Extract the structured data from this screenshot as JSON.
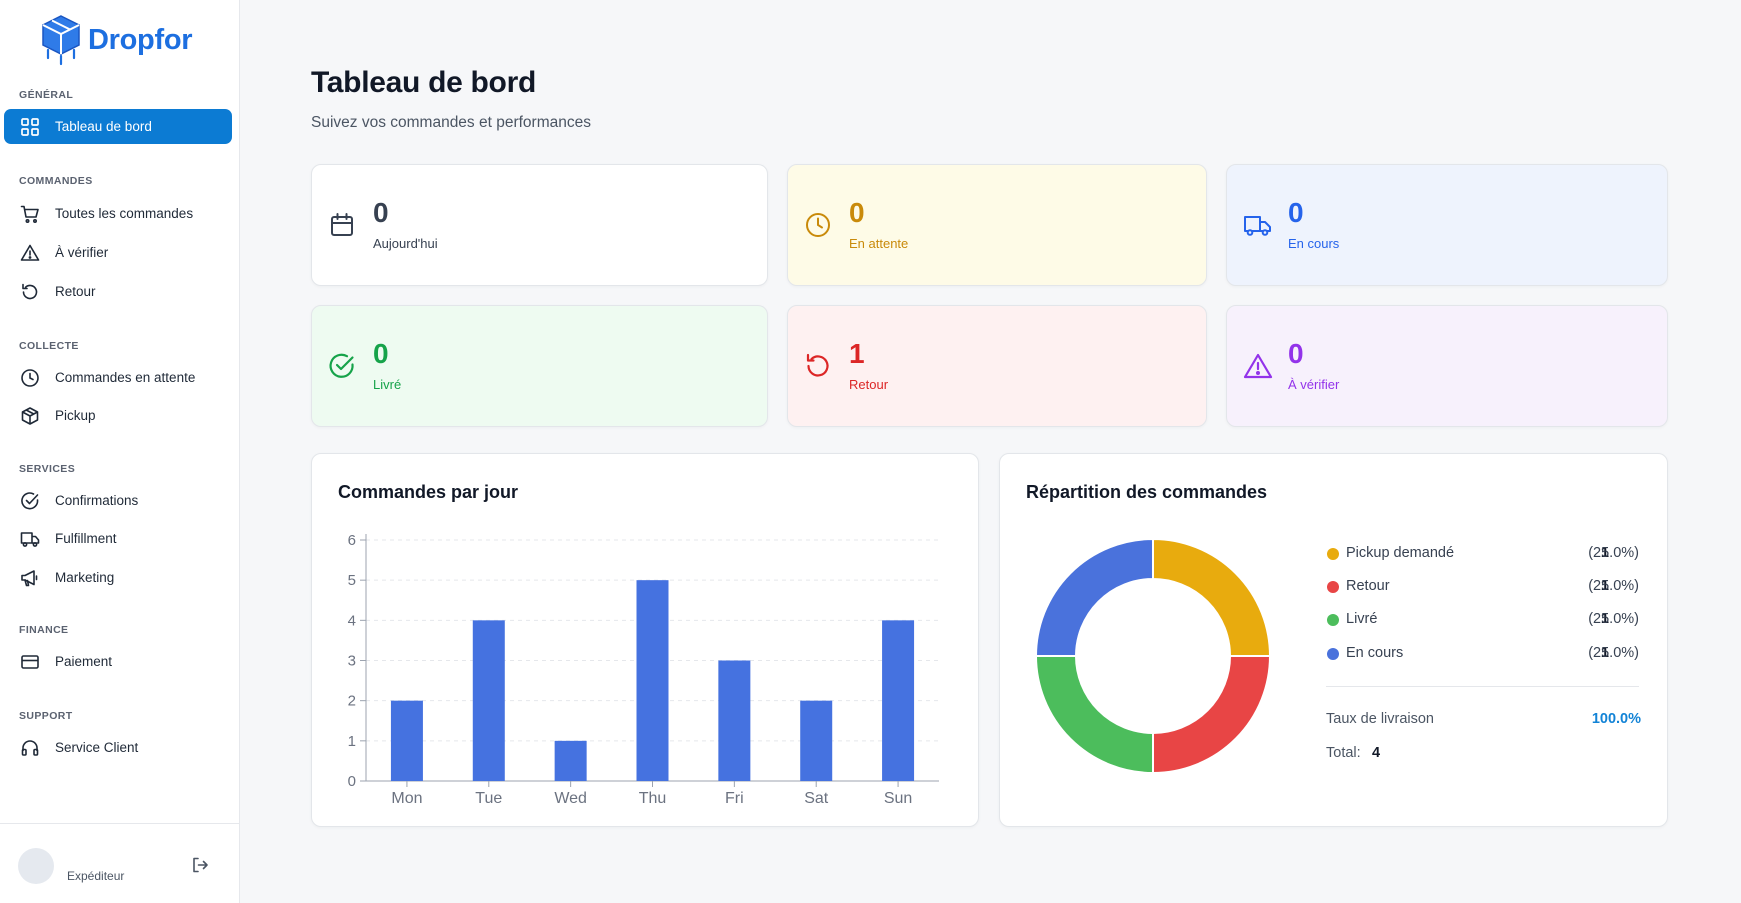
{
  "brand": {
    "name": "Dropfor",
    "color": "#1d6fe0"
  },
  "sidebar": {
    "sections": [
      {
        "label": "GÉNÉRAL",
        "items": [
          {
            "label": "Tableau de bord",
            "icon": "grid-icon",
            "active": true
          }
        ]
      },
      {
        "label": "COMMANDES",
        "items": [
          {
            "label": "Toutes les commandes",
            "icon": "cart-icon"
          },
          {
            "label": "À vérifier",
            "icon": "warning-icon"
          },
          {
            "label": "Retour",
            "icon": "undo-icon"
          }
        ]
      },
      {
        "label": "COLLECTE",
        "items": [
          {
            "label": "Commandes en attente",
            "icon": "clock-icon"
          },
          {
            "label": "Pickup",
            "icon": "package-icon"
          }
        ]
      },
      {
        "label": "SERVICES",
        "items": [
          {
            "label": "Confirmations",
            "icon": "check-circle-icon"
          },
          {
            "label": "Fulfillment",
            "icon": "truck-icon"
          },
          {
            "label": "Marketing",
            "icon": "megaphone-icon"
          }
        ]
      },
      {
        "label": "FINANCE",
        "items": [
          {
            "label": "Paiement",
            "icon": "credit-card-icon"
          }
        ]
      },
      {
        "label": "SUPPORT",
        "items": [
          {
            "label": "Service Client",
            "icon": "headphones-icon"
          }
        ]
      }
    ],
    "user": {
      "role": "Expéditeur"
    }
  },
  "header": {
    "title": "Tableau de bord",
    "subtitle": "Suivez vos commandes et performances"
  },
  "stats": [
    {
      "value": "0",
      "label": "Aujourd'hui",
      "icon": "calendar-icon",
      "color": "#374151",
      "bg": "#ffffff"
    },
    {
      "value": "0",
      "label": "En attente",
      "icon": "clock-icon",
      "color": "#c98a0a",
      "bg": "#fefbe7"
    },
    {
      "value": "0",
      "label": "En cours",
      "icon": "truck-icon",
      "color": "#2563eb",
      "bg": "#eef3fd"
    },
    {
      "value": "0",
      "label": "Livré",
      "icon": "check-circle-icon",
      "color": "#16a34a",
      "bg": "#eefbf1"
    },
    {
      "value": "1",
      "label": "Retour",
      "icon": "undo-icon",
      "color": "#dc2626",
      "bg": "#fef1f1"
    },
    {
      "value": "0",
      "label": "À vérifier",
      "icon": "warning-icon",
      "color": "#9333ea",
      "bg": "#f7f1fc"
    }
  ],
  "bar_panel": {
    "title": "Commandes par jour"
  },
  "donut_panel": {
    "title": "Répartition des commandes",
    "legend": [
      {
        "name": "Pickup demandé",
        "count": "1",
        "pct": "(25.0%)",
        "color": "#e8ab0e"
      },
      {
        "name": "Retour",
        "count": "1",
        "pct": "(25.0%)",
        "color": "#e84545"
      },
      {
        "name": "Livré",
        "count": "1",
        "pct": "(25.0%)",
        "color": "#4cbd5c"
      },
      {
        "name": "En cours",
        "count": "1",
        "pct": "(25.0%)",
        "color": "#4a72dc"
      }
    ],
    "rate_label": "Taux de livraison",
    "rate_value": "100.0%",
    "total_label": "Total:",
    "total_value": "4"
  },
  "chart_data": [
    {
      "type": "bar",
      "categories": [
        "Mon",
        "Tue",
        "Wed",
        "Thu",
        "Fri",
        "Sat",
        "Sun"
      ],
      "values": [
        2,
        4,
        1,
        5,
        3,
        2,
        4
      ],
      "ylim": [
        0,
        6
      ],
      "yticks": [
        "0",
        "1",
        "2",
        "3",
        "4",
        "5",
        "6"
      ],
      "color": "#4572e0",
      "grid": true
    },
    {
      "type": "pie",
      "donut": true,
      "labels": [
        "Pickup demandé",
        "Retour",
        "Livré",
        "En cours"
      ],
      "values": [
        1,
        1,
        1,
        1
      ],
      "colors": [
        "#e8ab0e",
        "#e84545",
        "#4cbd5c",
        "#4a72dc"
      ]
    }
  ]
}
